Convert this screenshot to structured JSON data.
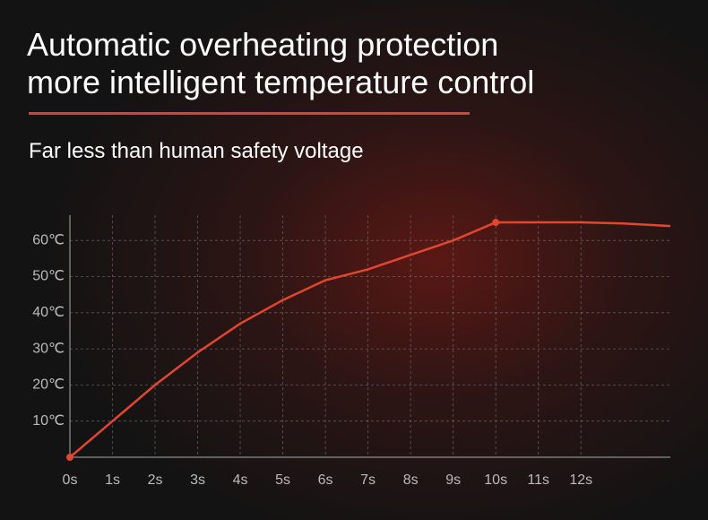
{
  "title": [
    "Automatic overheating protection",
    "more intelligent temperature control"
  ],
  "subtitle": "Far less than human safety voltage",
  "chart_data": {
    "type": "line",
    "x": [
      0,
      1,
      2,
      3,
      4,
      5,
      6,
      7,
      8,
      9,
      10,
      11,
      12,
      13,
      14.1
    ],
    "series": [
      {
        "color": "#e2462f",
        "values": [
          0,
          10,
          20,
          29,
          37,
          43.5,
          49,
          52,
          56,
          60,
          65,
          65,
          65,
          64.7,
          64
        ]
      }
    ],
    "xlim": [
      0,
      14.1
    ],
    "ylim": [
      0,
      67
    ],
    "xticks": [
      {
        "value": 0,
        "label": "0s"
      },
      {
        "value": 1,
        "label": "1s"
      },
      {
        "value": 2,
        "label": "2s"
      },
      {
        "value": 3,
        "label": "3s"
      },
      {
        "value": 4,
        "label": "4s"
      },
      {
        "value": 5,
        "label": "5s"
      },
      {
        "value": 6,
        "label": "6s"
      },
      {
        "value": 7,
        "label": "7s"
      },
      {
        "value": 8,
        "label": "8s"
      },
      {
        "value": 9,
        "label": "9s"
      },
      {
        "value": 10,
        "label": "10s"
      },
      {
        "value": 11,
        "label": "11s"
      },
      {
        "value": 12,
        "label": "12s"
      }
    ],
    "yticks": [
      {
        "value": 10,
        "label": "10℃"
      },
      {
        "value": 20,
        "label": "20℃"
      },
      {
        "value": 30,
        "label": "30℃"
      },
      {
        "value": 40,
        "label": "40℃"
      },
      {
        "value": 50,
        "label": "50℃"
      },
      {
        "value": 60,
        "label": "60℃"
      }
    ],
    "grid": true
  }
}
